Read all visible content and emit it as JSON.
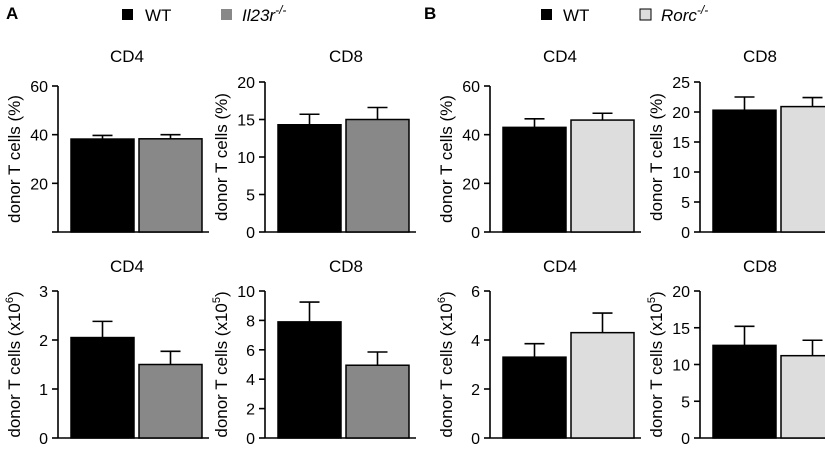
{
  "panels": [
    {
      "label": "A",
      "legend": [
        {
          "text": "WT",
          "color": "#000000"
        },
        {
          "text": "Il23r",
          "suffix": "-/-",
          "italic": true,
          "color": "#888888"
        }
      ]
    },
    {
      "label": "B",
      "legend": [
        {
          "text": "WT",
          "color": "#000000"
        },
        {
          "text": "Rorc",
          "suffix": "-/-",
          "italic": true,
          "color": "#dddddd"
        }
      ]
    }
  ],
  "chart_data": [
    {
      "type": "bar",
      "title": "CD4",
      "ylabel": "donor T cells (%)",
      "ylim": [
        0,
        60
      ],
      "yticks": [
        0,
        20,
        40,
        60
      ],
      "yticklabels": [
        "",
        "20",
        "40",
        "60"
      ],
      "categories": [
        "WT",
        "Il23r-/-"
      ],
      "values": [
        38.2,
        38.3
      ],
      "errors": [
        1.5,
        1.7
      ],
      "colors": [
        "#000000",
        "#888888"
      ]
    },
    {
      "type": "bar",
      "title": "CD8",
      "ylabel": "donor T cells (%)",
      "ylim": [
        0,
        20
      ],
      "yticks": [
        0,
        5,
        10,
        15,
        20
      ],
      "yticklabels": [
        "0",
        "5",
        "10",
        "15",
        "20"
      ],
      "categories": [
        "WT",
        "Il23r-/-"
      ],
      "values": [
        14.3,
        15.0
      ],
      "errors": [
        1.4,
        1.6
      ],
      "colors": [
        "#000000",
        "#888888"
      ]
    },
    {
      "type": "bar",
      "title": "CD4",
      "ylabel": "donor T cells (%)",
      "ylim": [
        0,
        60
      ],
      "yticks": [
        0,
        20,
        40,
        60
      ],
      "yticklabels": [
        "0",
        "20",
        "40",
        "60"
      ],
      "categories": [
        "WT",
        "Rorc-/-"
      ],
      "values": [
        43.0,
        46.0
      ],
      "errors": [
        3.5,
        2.8
      ],
      "colors": [
        "#000000",
        "#dddddd"
      ]
    },
    {
      "type": "bar",
      "title": "CD8",
      "ylabel": "donor T cells (%)",
      "ylim": [
        0,
        25
      ],
      "yticks": [
        0,
        5,
        10,
        15,
        20,
        25
      ],
      "yticklabels": [
        "0",
        "5",
        "10",
        "15",
        "20",
        "25"
      ],
      "categories": [
        "WT",
        "Rorc-/-"
      ],
      "values": [
        20.3,
        20.9
      ],
      "errors": [
        2.2,
        1.5
      ],
      "colors": [
        "#000000",
        "#dddddd"
      ]
    },
    {
      "type": "bar",
      "title": "CD4",
      "ylabel": "donor T cells (x10",
      "ylabel_exp": "6",
      "ylim": [
        0,
        3
      ],
      "yticks": [
        0,
        1,
        2,
        3
      ],
      "yticklabels": [
        "0",
        "1",
        "2",
        "3"
      ],
      "categories": [
        "WT",
        "Il23r-/-"
      ],
      "values": [
        2.05,
        1.5
      ],
      "errors": [
        0.33,
        0.27
      ],
      "colors": [
        "#000000",
        "#888888"
      ]
    },
    {
      "type": "bar",
      "title": "CD8",
      "ylabel": "donor T cells (x10",
      "ylabel_exp": "5",
      "ylim": [
        0,
        10
      ],
      "yticks": [
        0,
        2,
        4,
        6,
        8,
        10
      ],
      "yticklabels": [
        "0",
        "2",
        "4",
        "6",
        "8",
        "10"
      ],
      "categories": [
        "WT",
        "Il23r-/-"
      ],
      "values": [
        7.9,
        4.95
      ],
      "errors": [
        1.35,
        0.9
      ],
      "colors": [
        "#000000",
        "#888888"
      ]
    },
    {
      "type": "bar",
      "title": "CD4",
      "ylabel": "donor T cells (x10",
      "ylabel_exp": "6",
      "ylim": [
        0,
        6
      ],
      "yticks": [
        0,
        2,
        4,
        6
      ],
      "yticklabels": [
        "0",
        "2",
        "4",
        "6"
      ],
      "categories": [
        "WT",
        "Rorc-/-"
      ],
      "values": [
        3.3,
        4.3
      ],
      "errors": [
        0.55,
        0.8
      ],
      "colors": [
        "#000000",
        "#dddddd"
      ]
    },
    {
      "type": "bar",
      "title": "CD8",
      "ylabel": "donor T cells (x10",
      "ylabel_exp": "5",
      "ylim": [
        0,
        20
      ],
      "yticks": [
        0,
        5,
        10,
        15,
        20
      ],
      "yticklabels": [
        "0",
        "5",
        "10",
        "15",
        "20"
      ],
      "categories": [
        "WT",
        "Rorc-/-"
      ],
      "values": [
        12.6,
        11.2
      ],
      "errors": [
        2.6,
        2.1
      ],
      "colors": [
        "#000000",
        "#dddddd"
      ]
    }
  ]
}
